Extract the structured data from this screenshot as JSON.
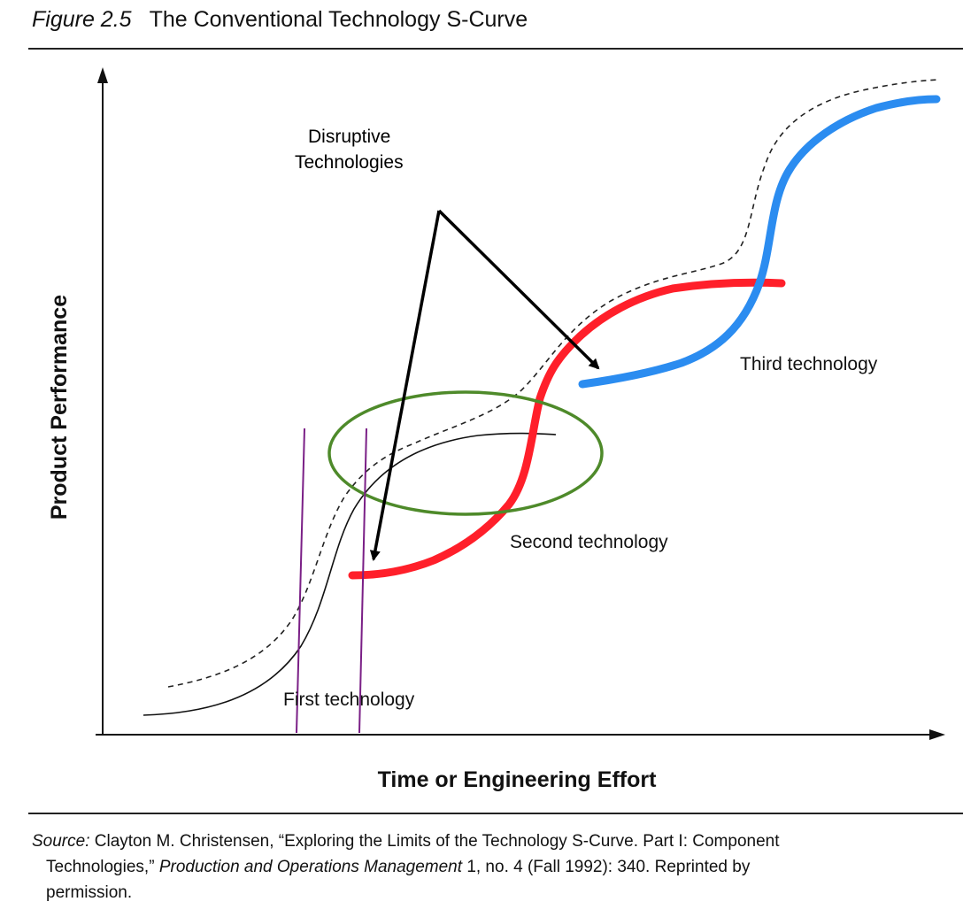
{
  "figure": {
    "label": "Figure 2.5",
    "title": "The Conventional Technology S-Curve"
  },
  "axes": {
    "x_label": "Time or Engineering Effort",
    "y_label": "Product Performance"
  },
  "annotations": {
    "disruptive_line1": "Disruptive",
    "disruptive_line2": "Technologies"
  },
  "curves": {
    "first": "First technology",
    "second": "Second technology",
    "third": "Third technology"
  },
  "colors": {
    "second_curve": "#ff1f2a",
    "third_curve": "#2b8cf0",
    "ellipse": "#4e8a2a",
    "vertical_lines": "#7a1f86",
    "arrows": "#000000"
  },
  "source": {
    "prefix": "Source:",
    "line1_a": "Clayton M. Christensen, “Exploring the Limits of the Technology S-Curve. Part I: Component",
    "line2_a": "Technologies,”",
    "journal": "Production and Operations Management",
    "line2_b": "1, no. 4 (Fall 1992): 340. Reprinted by",
    "line3": "permission."
  }
}
